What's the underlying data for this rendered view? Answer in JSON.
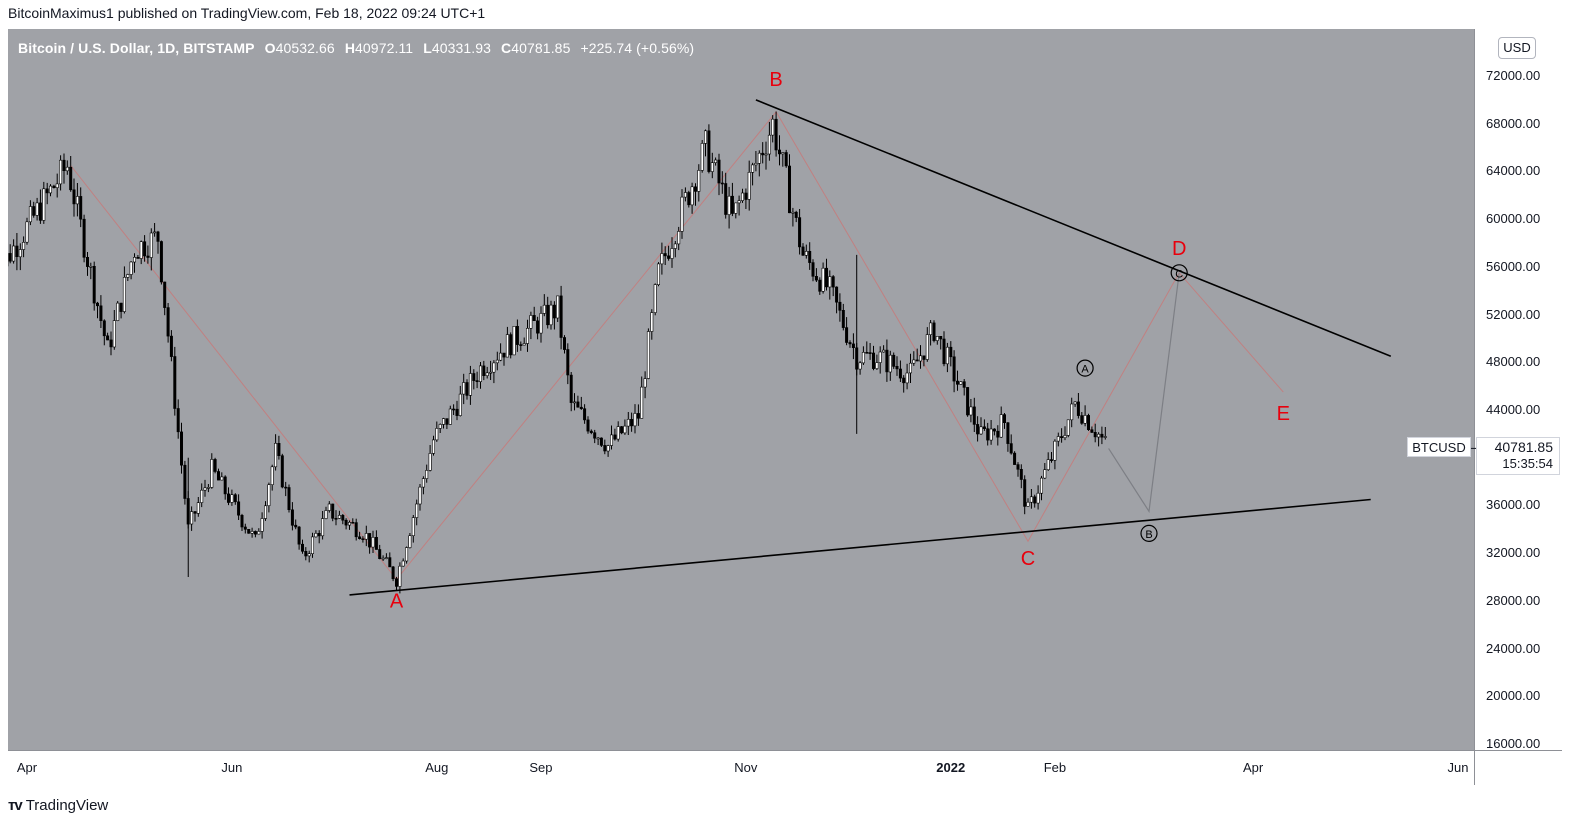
{
  "header": {
    "publisher_line": "BitcoinMaximus1 published on TradingView.com, Feb 18, 2022 09:24 UTC+1"
  },
  "legend": {
    "symbol": "Bitcoin / U.S. Dollar, 1D, BITSTAMP",
    "o_label": "O",
    "o_value": "40532.66",
    "h_label": "H",
    "h_value": "40972.11",
    "l_label": "L",
    "l_value": "40331.93",
    "c_label": "C",
    "c_value": "40781.85",
    "change": "+225.74 (+0.56%)"
  },
  "currency_button": "USD",
  "price_marker": {
    "symbol": "BTCUSD",
    "price": "40781.85",
    "countdown": "15:35:54"
  },
  "footer": {
    "logo_text": "TradingView"
  },
  "colors": {
    "background_plot": "#a0a2a7",
    "candle": "#000000",
    "wave_label": "#e8000d",
    "trendline": "#000000",
    "projection": "#c77a7a"
  },
  "chart_data": {
    "type": "candlestick",
    "ylim": [
      14000,
      76000
    ],
    "y_ticks": [
      "72000.00",
      "68000.00",
      "64000.00",
      "60000.00",
      "56000.00",
      "52000.00",
      "48000.00",
      "44000.00",
      "40000.00",
      "36000.00",
      "32000.00",
      "28000.00",
      "24000.00",
      "20000.00",
      "16000.00"
    ],
    "x_ticks": [
      {
        "label": "Apr",
        "date": "2021-04-01",
        "bold": false
      },
      {
        "label": "Jun",
        "date": "2021-06-01",
        "bold": false
      },
      {
        "label": "Aug",
        "date": "2021-08-01",
        "bold": false
      },
      {
        "label": "Sep",
        "date": "2021-09-01",
        "bold": false
      },
      {
        "label": "Nov",
        "date": "2021-11-01",
        "bold": false
      },
      {
        "label": "2022",
        "date": "2022-01-01",
        "bold": true
      },
      {
        "label": "Feb",
        "date": "2022-02-01",
        "bold": false
      },
      {
        "label": "Apr",
        "date": "2022-04-01",
        "bold": false
      },
      {
        "label": "Jun",
        "date": "2022-06-01",
        "bold": false
      }
    ],
    "price_path": [
      [
        "2021-03-22",
        55000
      ],
      [
        "2021-04-13",
        64500
      ],
      [
        "2021-04-25",
        49000
      ],
      [
        "2021-05-03",
        57500
      ],
      [
        "2021-05-10",
        58500
      ],
      [
        "2021-05-19",
        34000
      ],
      [
        "2021-05-26",
        39000
      ],
      [
        "2021-06-08",
        33000
      ],
      [
        "2021-06-14",
        40500
      ],
      [
        "2021-06-22",
        31500
      ],
      [
        "2021-06-30",
        35500
      ],
      [
        "2021-07-10",
        33800
      ],
      [
        "2021-07-20",
        29800
      ],
      [
        "2021-07-31",
        41500
      ],
      [
        "2021-08-14",
        47500
      ],
      [
        "2021-08-22",
        49500
      ],
      [
        "2021-09-06",
        52500
      ],
      [
        "2021-09-10",
        44500
      ],
      [
        "2021-09-21",
        41000
      ],
      [
        "2021-09-30",
        43500
      ],
      [
        "2021-10-06",
        55500
      ],
      [
        "2021-10-20",
        66000
      ],
      [
        "2021-10-28",
        60000
      ],
      [
        "2021-11-09",
        68000
      ],
      [
        "2021-11-18",
        57000
      ],
      [
        "2021-11-26",
        54000
      ],
      [
        "2021-12-04",
        48500
      ],
      [
        "2021-12-10",
        48500
      ],
      [
        "2021-12-20",
        47000
      ],
      [
        "2021-12-27",
        50800
      ],
      [
        "2022-01-10",
        41800
      ],
      [
        "2022-01-17",
        43000
      ],
      [
        "2022-01-24",
        35500
      ],
      [
        "2022-02-07",
        44500
      ],
      [
        "2022-02-10",
        43500
      ],
      [
        "2022-02-17",
        40782
      ]
    ],
    "waves": [
      {
        "label": "A",
        "date": "2021-07-20",
        "price": 29800
      },
      {
        "label": "B",
        "date": "2021-11-10",
        "price": 69000
      },
      {
        "label": "C",
        "date": "2022-01-24",
        "price": 33000
      },
      {
        "label": "D",
        "date": "2022-03-10",
        "price": 55500
      },
      {
        "label": "E",
        "date": "2022-04-10",
        "price": 45500
      }
    ],
    "sub_waves": [
      {
        "label": "A",
        "date": "2022-02-10",
        "price": 45500
      },
      {
        "label": "B",
        "date": "2022-03-01",
        "price": 35500
      },
      {
        "label": "C",
        "date": "2022-03-10",
        "price": 55500
      }
    ],
    "trendlines": [
      {
        "from": [
          "2021-07-06",
          28500
        ],
        "to": [
          "2022-05-06",
          36500
        ]
      },
      {
        "from": [
          "2021-11-04",
          70000
        ],
        "to": [
          "2022-05-12",
          48500
        ]
      }
    ],
    "projection_path": [
      [
        "2022-02-17",
        40782
      ],
      [
        "2022-03-01",
        35500
      ],
      [
        "2022-03-10",
        55500
      ]
    ],
    "wave_path": [
      [
        "2021-04-14",
        64500
      ],
      [
        "2021-07-20",
        29800
      ],
      [
        "2021-11-10",
        69000
      ],
      [
        "2022-01-24",
        33000
      ],
      [
        "2022-03-10",
        55500
      ],
      [
        "2022-04-10",
        45500
      ]
    ]
  }
}
